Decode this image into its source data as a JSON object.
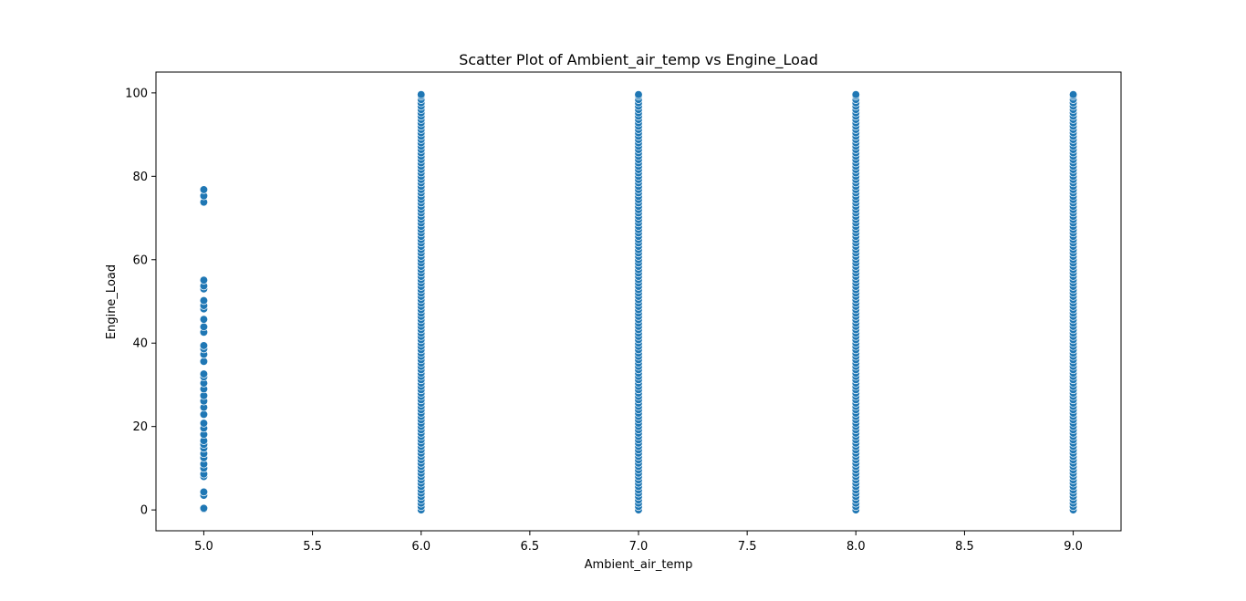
{
  "chart_data": {
    "type": "scatter",
    "title": "Scatter Plot of Ambient_air_temp vs Engine_Load",
    "xlabel": "Ambient_air_temp",
    "ylabel": "Engine_Load",
    "xlim": [
      4.78,
      9.22
    ],
    "ylim": [
      -5,
      105
    ],
    "xticks": [
      5.0,
      5.5,
      6.0,
      6.5,
      7.0,
      7.5,
      8.0,
      8.5,
      9.0
    ],
    "xtick_labels": [
      "5.0",
      "5.5",
      "6.0",
      "6.5",
      "7.0",
      "7.5",
      "8.0",
      "8.5",
      "9.0"
    ],
    "yticks": [
      0,
      20,
      40,
      60,
      80,
      100
    ],
    "ytick_labels": [
      "0",
      "20",
      "40",
      "60",
      "80",
      "100"
    ],
    "grid": false,
    "legend": "none",
    "marker_color": "#1f77b4",
    "marker_edge_color": "#ffffff",
    "series": [
      {
        "x": 5.0,
        "values": [
          0.2,
          0.4,
          3.5,
          4.3,
          8.0,
          8.6,
          10.0,
          11.0,
          12.5,
          13.5,
          14.8,
          15.7,
          16.6,
          18.1,
          19.6,
          20.8,
          22.9,
          24.6,
          26.1,
          27.4,
          29.0,
          30.4,
          31.9,
          32.6,
          35.6,
          37.3,
          38.6,
          39.4,
          42.6,
          43.9,
          45.7,
          48.2,
          49.0,
          50.2,
          53.0,
          53.7,
          55.1,
          73.8,
          75.3,
          76.8
        ]
      },
      {
        "x": 6.0,
        "values": [
          0.0,
          0.8,
          1.6,
          2.4,
          3.2,
          4.0,
          4.8,
          5.6,
          6.4,
          7.2,
          8.0,
          8.8,
          9.6,
          10.4,
          11.2,
          12.0,
          12.8,
          13.6,
          14.4,
          15.2,
          16.0,
          16.8,
          17.6,
          18.4,
          19.2,
          20.0,
          20.8,
          21.6,
          22.4,
          23.2,
          24.0,
          24.8,
          25.6,
          26.4,
          27.2,
          28.0,
          28.8,
          29.6,
          30.4,
          31.2,
          32.0,
          32.8,
          33.6,
          34.4,
          35.2,
          36.0,
          36.8,
          37.6,
          38.4,
          39.2,
          40.0,
          40.8,
          41.6,
          42.4,
          43.2,
          44.0,
          44.8,
          45.6,
          46.4,
          47.2,
          48.0,
          48.8,
          49.6,
          50.4,
          51.2,
          52.0,
          52.8,
          53.6,
          54.4,
          55.2,
          56.0,
          56.8,
          57.6,
          58.4,
          59.2,
          60.0,
          60.8,
          61.6,
          62.4,
          63.2,
          64.0,
          64.8,
          65.6,
          66.4,
          67.2,
          68.0,
          68.8,
          69.6,
          70.4,
          71.2,
          72.0,
          72.8,
          73.6,
          74.4,
          75.2,
          76.0,
          76.8,
          77.6,
          78.4,
          79.2,
          80.0,
          80.8,
          81.6,
          82.4,
          83.2,
          84.0,
          84.8,
          85.6,
          86.4,
          87.2,
          88.0,
          88.8,
          89.6,
          90.4,
          91.2,
          92.0,
          92.8,
          93.6,
          94.4,
          95.2,
          96.0,
          96.8,
          97.6,
          98.4,
          99.2,
          99.6
        ]
      },
      {
        "x": 7.0,
        "values": [
          0.0,
          0.8,
          1.6,
          2.4,
          3.2,
          4.0,
          4.8,
          5.6,
          6.4,
          7.2,
          8.0,
          8.8,
          9.6,
          10.4,
          11.2,
          12.0,
          12.8,
          13.6,
          14.4,
          15.2,
          16.0,
          16.8,
          17.6,
          18.4,
          19.2,
          20.0,
          20.8,
          21.6,
          22.4,
          23.2,
          24.0,
          24.8,
          25.6,
          26.4,
          27.2,
          28.0,
          28.8,
          29.6,
          30.4,
          31.2,
          32.0,
          32.8,
          33.6,
          34.4,
          35.2,
          36.0,
          36.8,
          37.6,
          38.4,
          39.2,
          40.0,
          40.8,
          41.6,
          42.4,
          43.2,
          44.0,
          44.8,
          45.6,
          46.4,
          47.2,
          48.0,
          48.8,
          49.6,
          50.4,
          51.2,
          52.0,
          52.8,
          53.6,
          54.4,
          55.2,
          56.0,
          56.8,
          57.6,
          58.4,
          59.2,
          60.0,
          60.8,
          61.6,
          62.4,
          63.2,
          64.0,
          64.8,
          65.6,
          66.4,
          67.2,
          68.0,
          68.8,
          69.6,
          70.4,
          71.2,
          72.0,
          72.8,
          73.6,
          74.4,
          75.2,
          76.0,
          76.8,
          77.6,
          78.4,
          79.2,
          80.0,
          80.8,
          81.6,
          82.4,
          83.2,
          84.0,
          84.8,
          85.6,
          86.4,
          87.2,
          88.0,
          88.8,
          89.6,
          90.4,
          91.2,
          92.0,
          92.8,
          93.6,
          94.4,
          95.2,
          96.0,
          96.8,
          97.6,
          98.4,
          99.2,
          99.6
        ]
      },
      {
        "x": 8.0,
        "values": [
          0.0,
          0.8,
          1.6,
          2.4,
          3.2,
          4.0,
          4.8,
          5.6,
          6.4,
          7.2,
          8.0,
          8.8,
          9.6,
          10.4,
          11.2,
          12.0,
          12.8,
          13.6,
          14.4,
          15.2,
          16.0,
          16.8,
          17.6,
          18.4,
          19.2,
          20.0,
          20.8,
          21.6,
          22.4,
          23.2,
          24.0,
          24.8,
          25.6,
          26.4,
          27.2,
          28.0,
          28.8,
          29.6,
          30.4,
          31.2,
          32.0,
          32.8,
          33.6,
          34.4,
          35.2,
          36.0,
          36.8,
          37.6,
          38.4,
          39.2,
          40.0,
          40.8,
          41.6,
          42.4,
          43.2,
          44.0,
          44.8,
          45.6,
          46.4,
          47.2,
          48.0,
          48.8,
          49.6,
          50.4,
          51.2,
          52.0,
          52.8,
          53.6,
          54.4,
          55.2,
          56.0,
          56.8,
          57.6,
          58.4,
          59.2,
          60.0,
          60.8,
          61.6,
          62.4,
          63.2,
          64.0,
          64.8,
          65.6,
          66.4,
          67.2,
          68.0,
          68.8,
          69.6,
          70.4,
          71.2,
          72.0,
          72.8,
          73.6,
          74.4,
          75.2,
          76.0,
          76.8,
          77.6,
          78.4,
          79.2,
          80.0,
          80.8,
          81.6,
          82.4,
          83.2,
          84.0,
          84.8,
          85.6,
          86.4,
          87.2,
          88.0,
          88.8,
          89.6,
          90.4,
          91.2,
          92.0,
          92.8,
          93.6,
          94.4,
          95.2,
          96.0,
          96.8,
          97.6,
          98.4,
          99.2,
          99.6
        ]
      },
      {
        "x": 9.0,
        "values": [
          0.0,
          0.8,
          1.6,
          2.4,
          3.2,
          4.0,
          4.8,
          5.6,
          6.4,
          7.2,
          8.0,
          8.8,
          9.6,
          10.4,
          11.2,
          12.0,
          12.8,
          13.6,
          14.4,
          15.2,
          16.0,
          16.8,
          17.6,
          18.4,
          19.2,
          20.0,
          20.8,
          21.6,
          22.4,
          23.2,
          24.0,
          24.8,
          25.6,
          26.4,
          27.2,
          28.0,
          28.8,
          29.6,
          30.4,
          31.2,
          32.0,
          32.8,
          33.6,
          34.4,
          35.2,
          36.0,
          36.8,
          37.6,
          38.4,
          39.2,
          40.0,
          40.8,
          41.6,
          42.4,
          43.2,
          44.0,
          44.8,
          45.6,
          46.4,
          47.2,
          48.0,
          48.8,
          49.6,
          50.4,
          51.2,
          52.0,
          52.8,
          53.6,
          54.4,
          55.2,
          56.0,
          56.8,
          57.6,
          58.4,
          59.2,
          60.0,
          60.8,
          61.6,
          62.4,
          63.2,
          64.0,
          64.8,
          65.6,
          66.4,
          67.2,
          68.0,
          68.8,
          69.6,
          70.4,
          71.2,
          72.0,
          72.8,
          73.6,
          74.4,
          75.2,
          76.0,
          76.8,
          77.6,
          78.4,
          79.2,
          80.0,
          80.8,
          81.6,
          82.4,
          83.2,
          84.0,
          84.8,
          85.6,
          86.4,
          87.2,
          88.0,
          88.8,
          89.6,
          90.4,
          91.2,
          92.0,
          92.8,
          93.6,
          94.4,
          95.2,
          96.0,
          96.8,
          97.6,
          98.4,
          99.2,
          99.6
        ]
      }
    ]
  }
}
